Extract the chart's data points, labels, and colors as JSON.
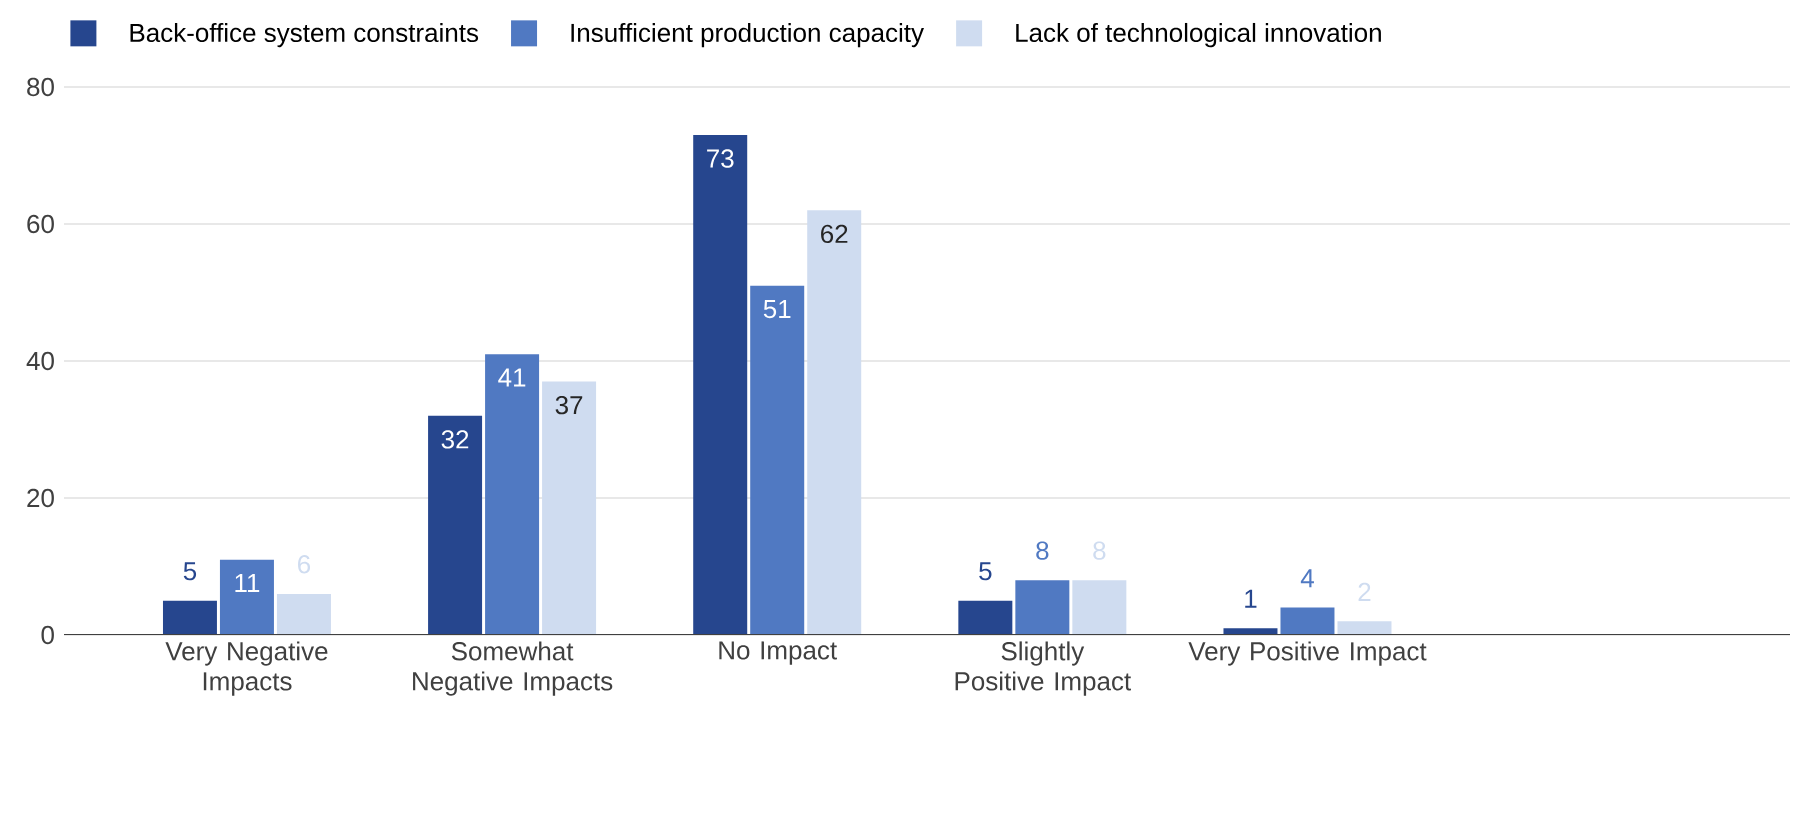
{
  "chart_data": {
    "type": "bar",
    "categories": [
      "Very Negative Impacts",
      "Somewhat Negative Impacts",
      "No Impact",
      "Slightly Positive Impact",
      "Very Positive Impact"
    ],
    "series": [
      {
        "name": "Back-office system constraints",
        "color": "#26468e",
        "values": [
          5,
          32,
          73,
          5,
          1
        ]
      },
      {
        "name": "Insufficient production capacity",
        "color": "#5079c2",
        "values": [
          11,
          41,
          51,
          8,
          4
        ]
      },
      {
        "name": "Lack of technological innovation",
        "color": "#cfdcf0",
        "values": [
          6,
          37,
          62,
          8,
          2
        ]
      }
    ],
    "ylim": [
      0,
      80
    ],
    "yticks": [
      0,
      20,
      40,
      60,
      80
    ],
    "grid": "y",
    "legend": "top left",
    "data_labels": true
  }
}
